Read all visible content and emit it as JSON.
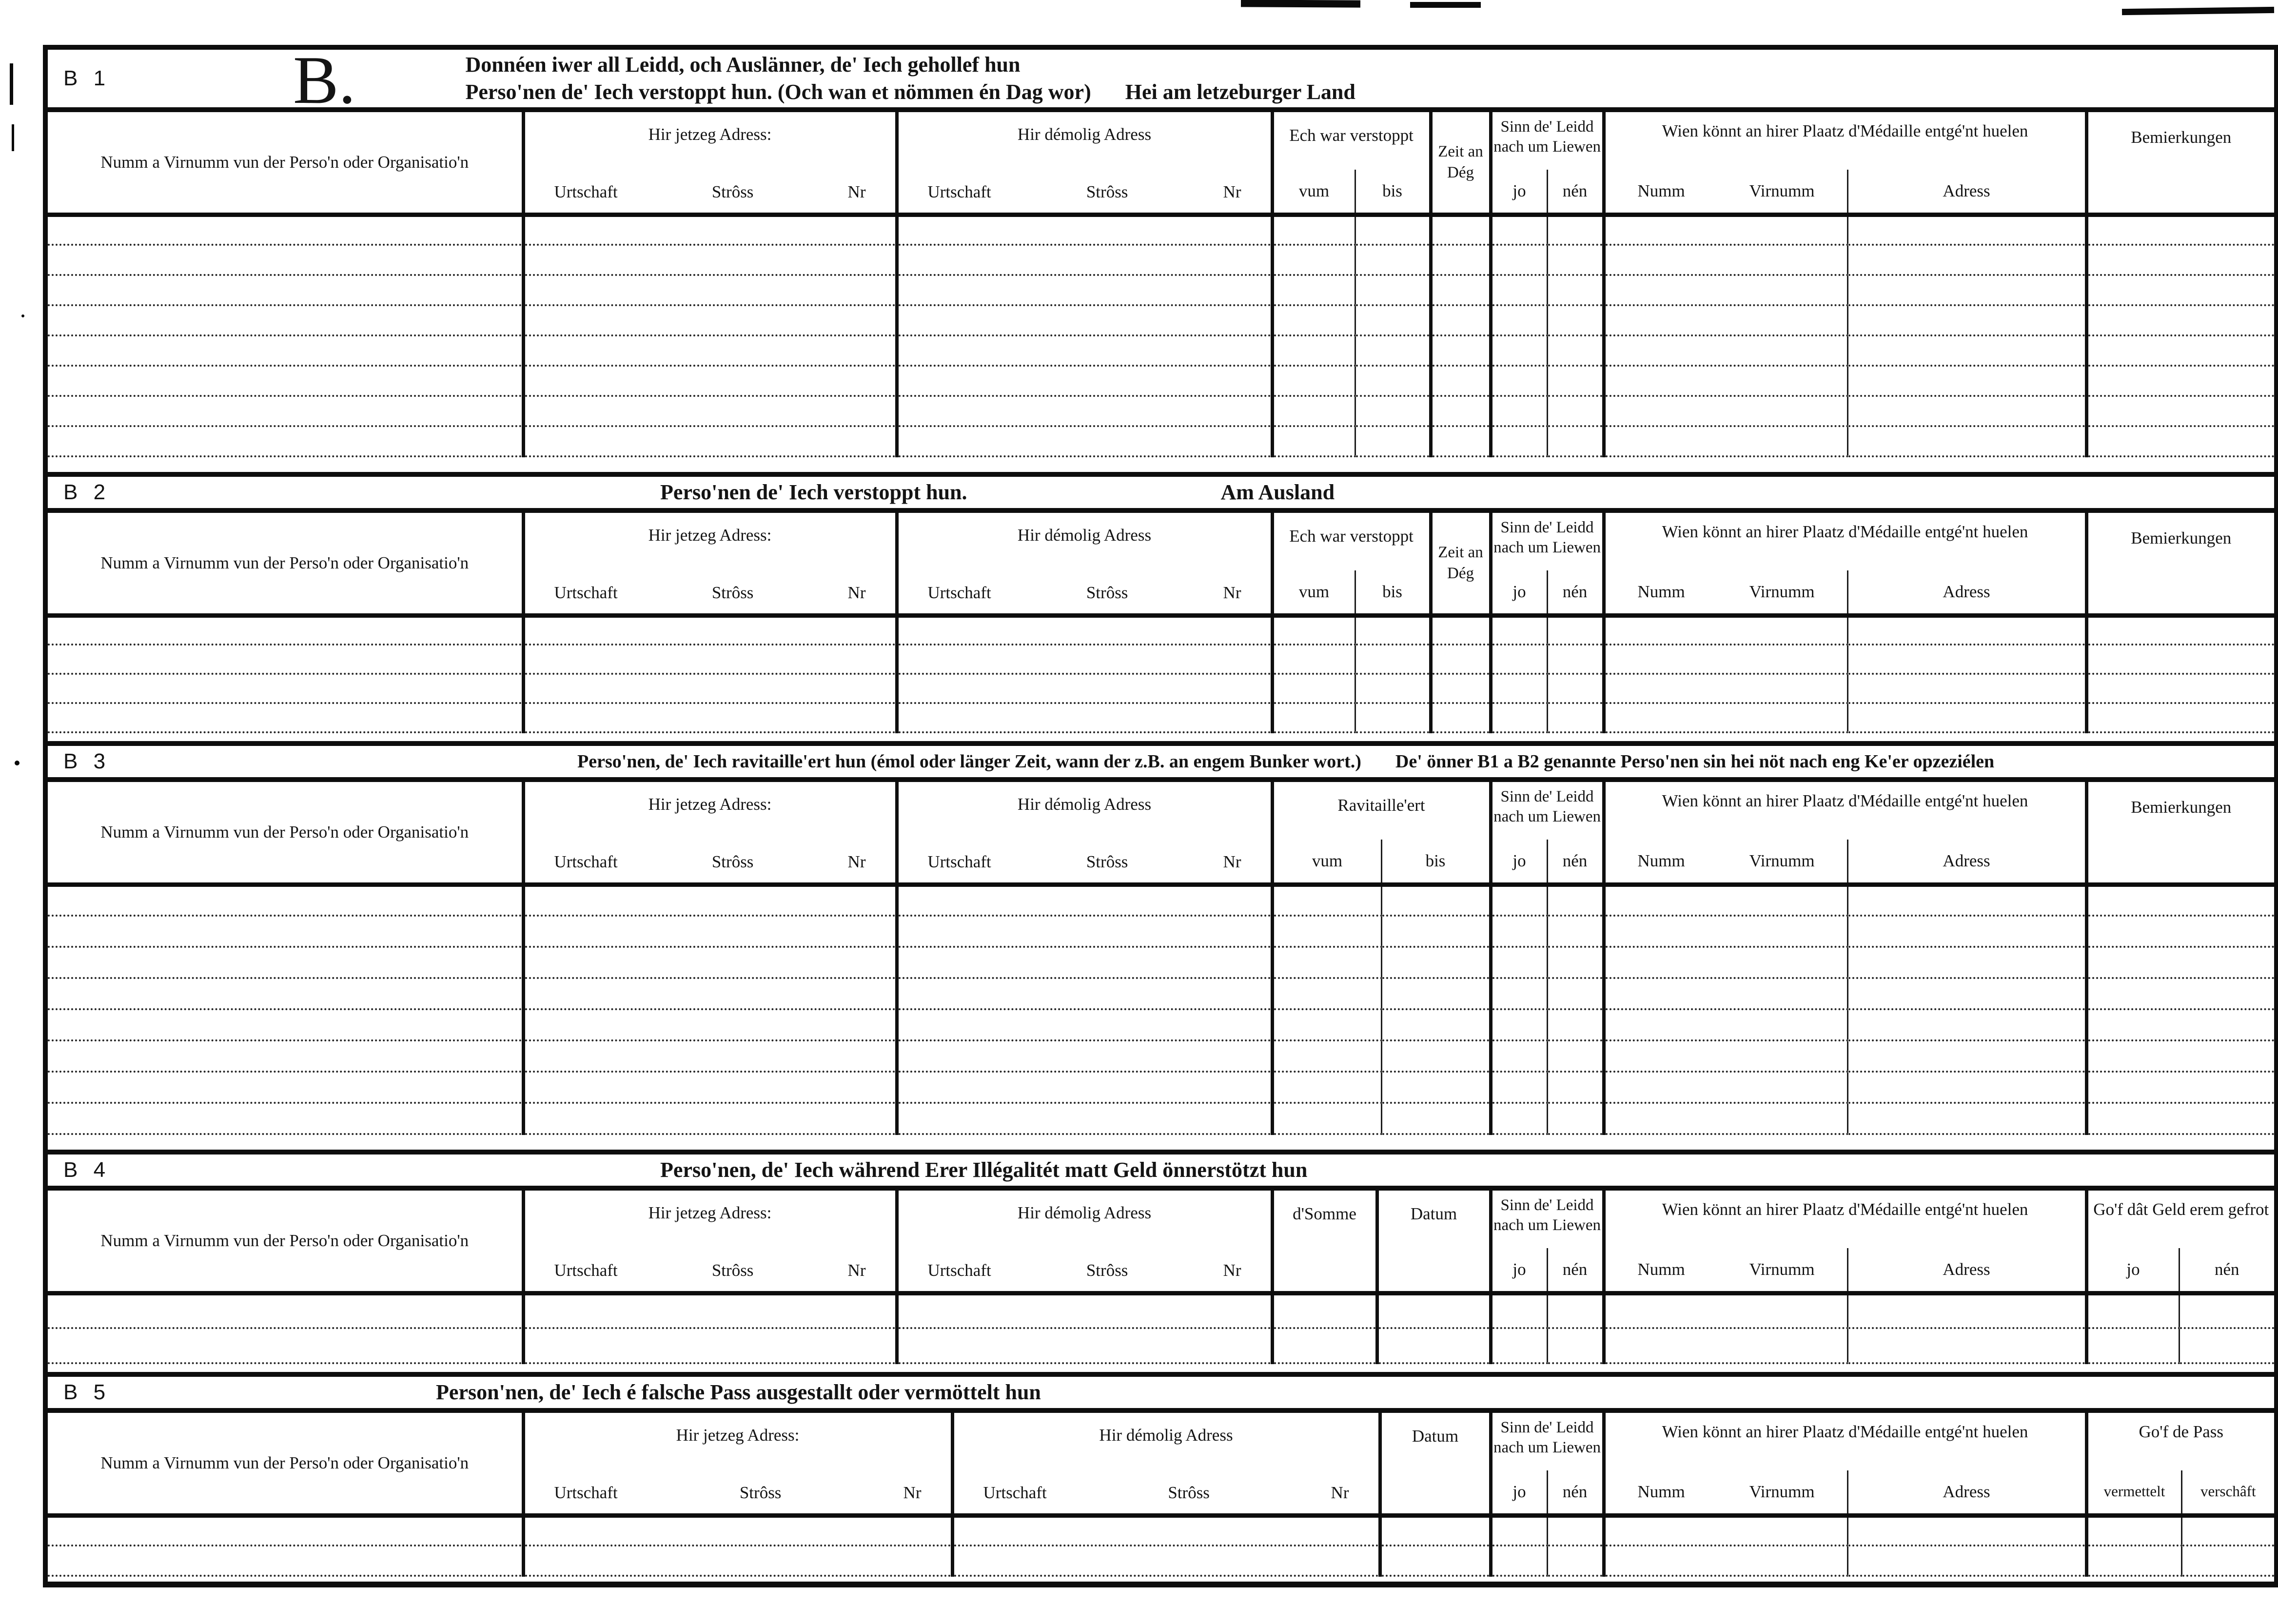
{
  "page": {
    "background": "#ffffff",
    "ink": "#141414"
  },
  "banner": {
    "b1_id": "B 1",
    "section_letter": "B.",
    "b1_title_line1": "Donnéen iwer all Leidd, och Auslänner, de' Iech gehollef hun",
    "b1_title_line2": "Perso'nen de' Iech verstoppt hun. (Och wan et nömmen én Dag wor)",
    "b1_title_suffix": "Hei am letzeburger Land",
    "b2_id": "B 2",
    "b2_title": "Perso'nen de' Iech verstoppt hun.",
    "b2_suffix": "Am Ausland",
    "b3_id": "B 3",
    "b3_title": "Perso'nen, de' Iech ravitaille'ert hun (émol oder länger Zeit, wann der z.B. an engem Bunker wort.)",
    "b3_suffix": "De' önner B1 a B2 genannte Perso'nen sin hei nöt nach eng Ke'er opzeziélen",
    "b4_id": "B 4",
    "b4_title": "Perso'nen, de' Iech während Erer Illégalitét matt Geld önnerstötzt hun",
    "b5_id": "B 5",
    "b5_title": "Person'nen, de' Iech é falsche Pass ausgestallt oder vermöttelt hun"
  },
  "columns": {
    "name": "Numm a Virnumm vun der Perso'n oder Organisatio'n",
    "jetzeg_adress": "Hir jetzeg Adress:",
    "demolig_adress": "Hir démolig Adress",
    "urtschaft": "Urtschaft",
    "stross": "Strôss",
    "nr": "Nr",
    "verstoppt": "Ech war verstoppt",
    "ravitailleert": "Ravitaille'ert",
    "vum": "vum",
    "bis": "bis",
    "zeit_an_deg": "Zeit an Dég",
    "sinn": "Sinn de' Leidd nach um Liewen",
    "jo": "jo",
    "nen": "nén",
    "medaille": "Wien könnt an hirer Plaatz d'Médaille entgé'nt huelen",
    "numm": "Numm",
    "virnumm": "Virnumm",
    "adress": "Adress",
    "bemierkungen": "Bemierkungen",
    "somme": "d'Somme",
    "datum": "Datum",
    "gof_geld": "Go'f dât Geld erem gefrot",
    "gof_pass": "Go'f de Pass",
    "vermettelt": "vermettelt",
    "verschaft": "verschâft"
  },
  "tables": {
    "b1_rows": 8,
    "b2_rows": 4,
    "b3_rows": 8,
    "b4_rows": 2,
    "b5_rows": 2
  }
}
